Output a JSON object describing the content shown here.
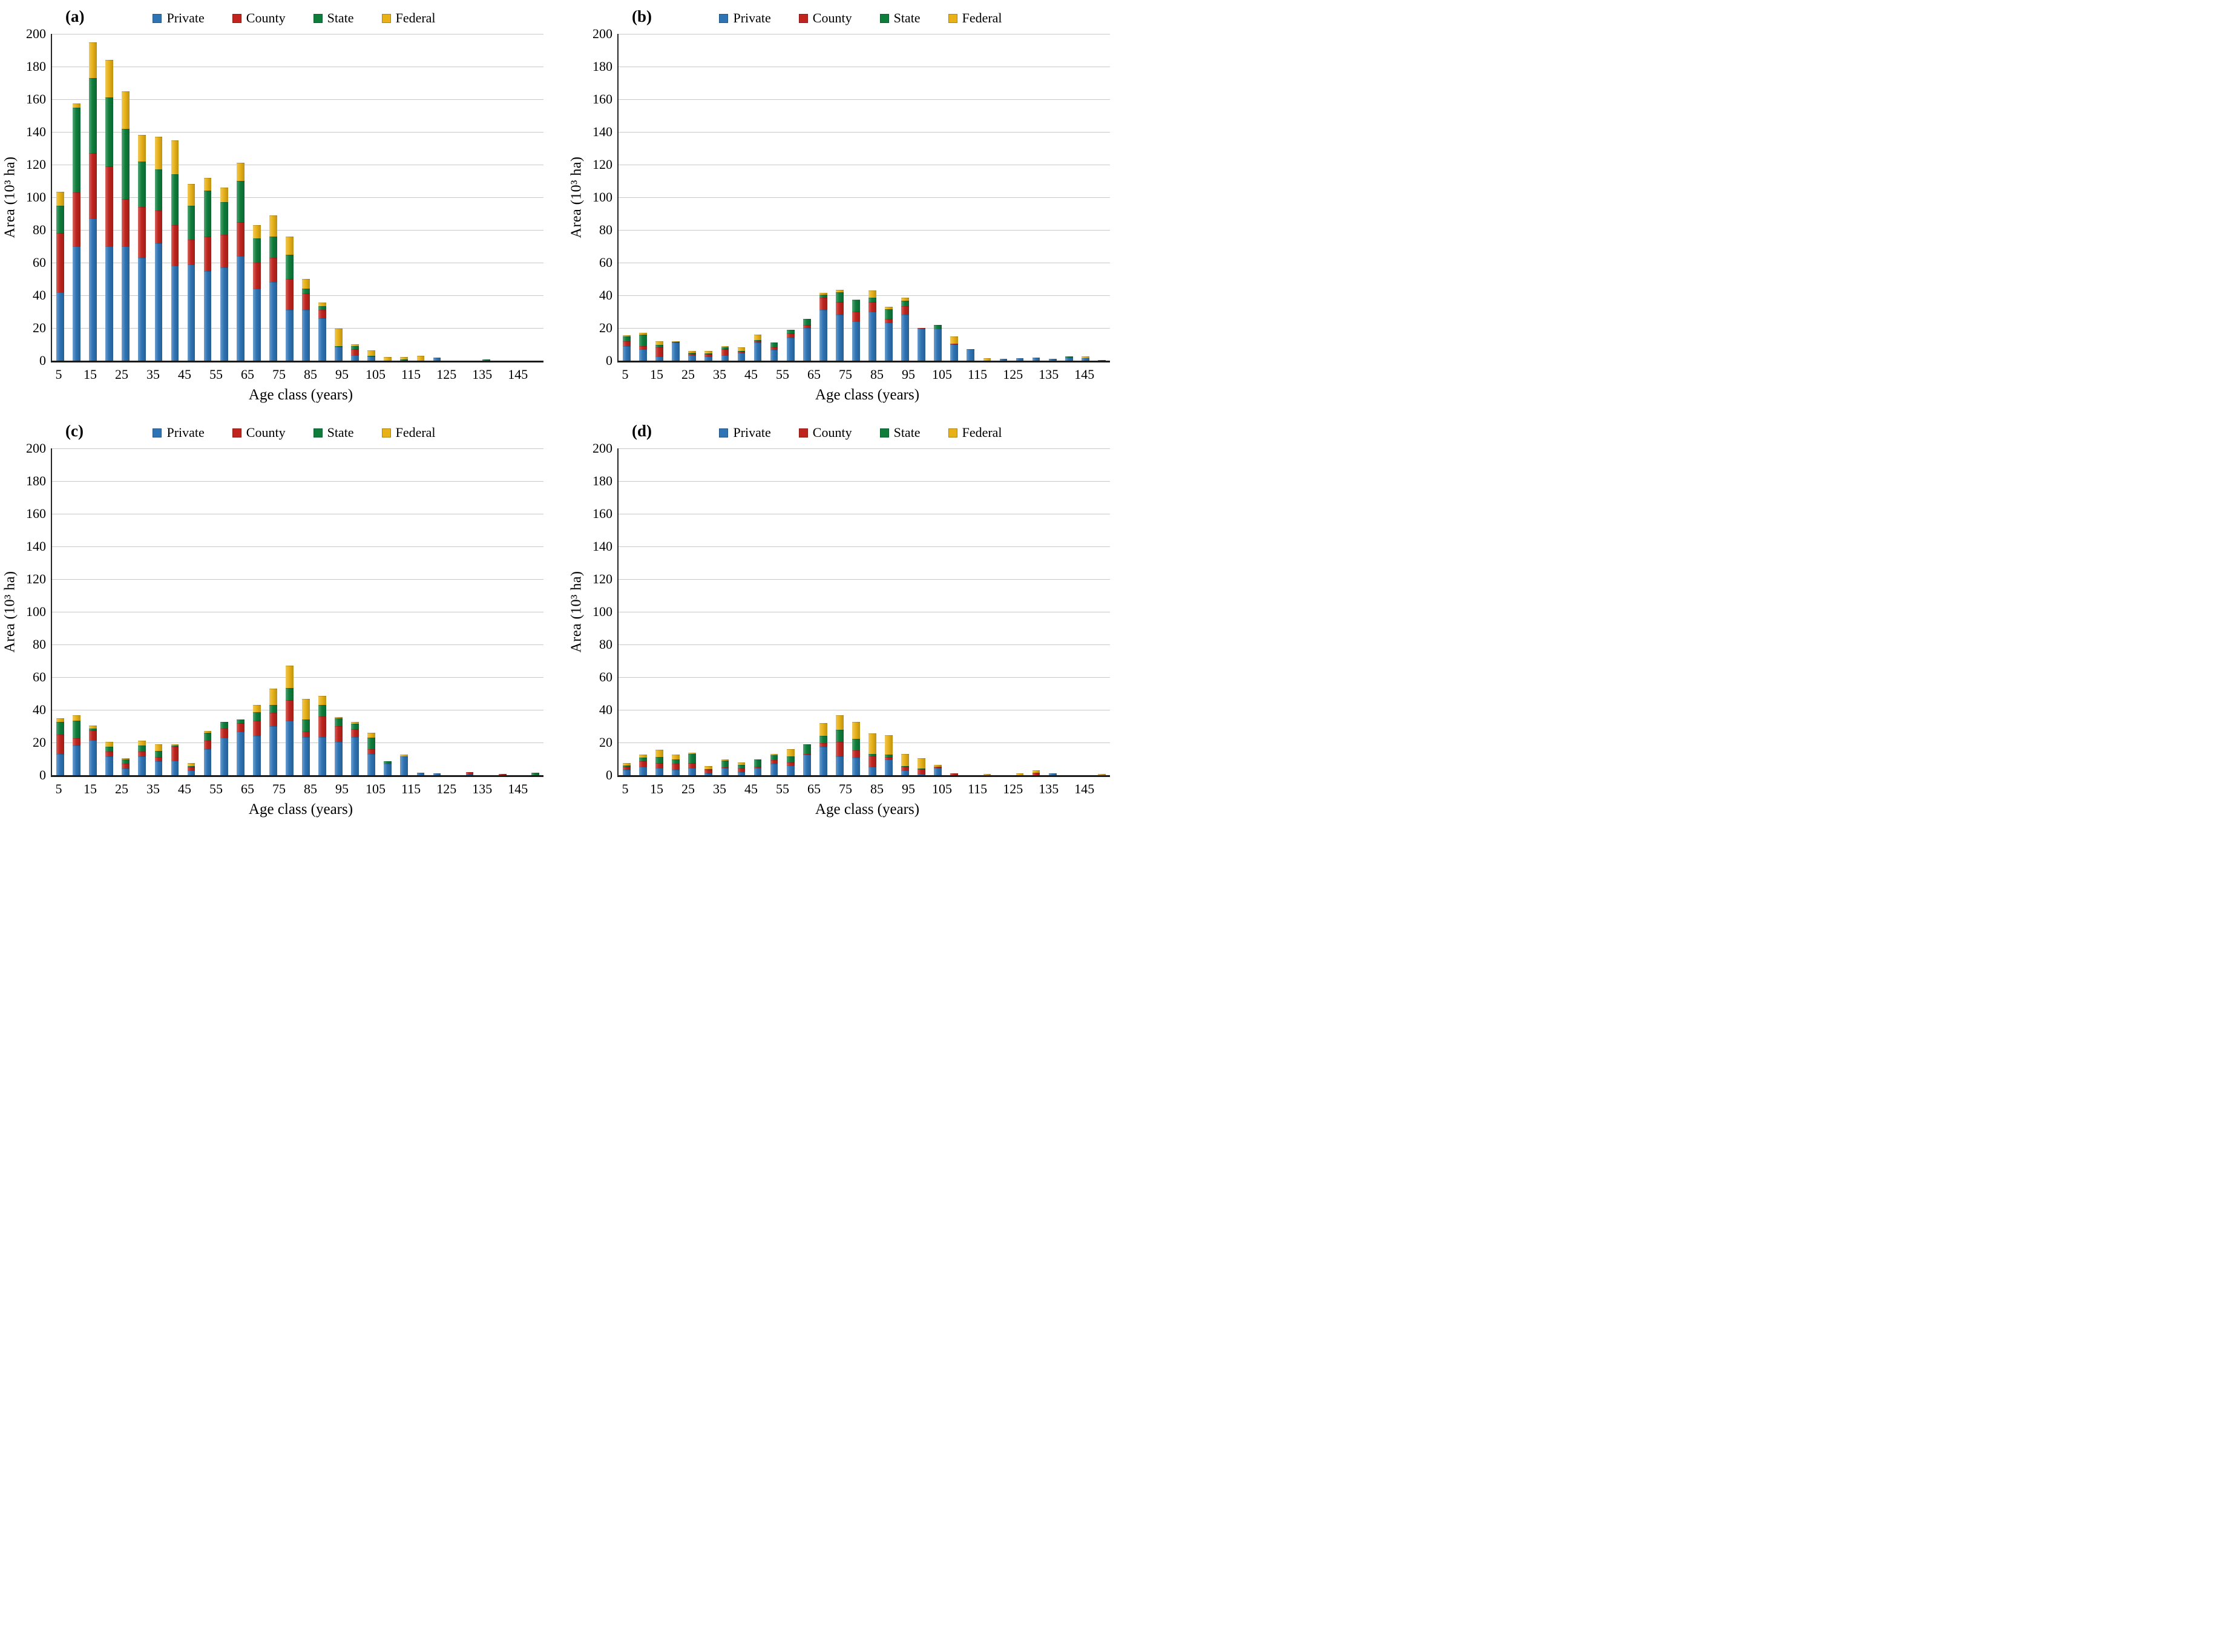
{
  "figure": {
    "y_axis_label": "Area  (10³ ha)",
    "x_axis_label": "Age class (years)",
    "y_ticks": [
      0,
      20,
      40,
      60,
      80,
      100,
      120,
      140,
      160,
      180,
      200
    ],
    "x_tick_labels": [
      "5",
      "15",
      "25",
      "35",
      "45",
      "55",
      "65",
      "75",
      "85",
      "95",
      "105",
      "115",
      "125",
      "135",
      "145"
    ],
    "legend": [
      {
        "label": "Private",
        "color": "#2e74b5"
      },
      {
        "label": "County",
        "color": "#c0241d"
      },
      {
        "label": "State",
        "color": "#0e7d3b"
      },
      {
        "label": "Federal",
        "color": "#e8b117"
      }
    ],
    "colors": {
      "grid": "#c9c9c9",
      "axis": "#1a1a1a"
    }
  },
  "chart_data": [
    {
      "type": "bar",
      "stacked": true,
      "panel_label": "(a)",
      "xlabel": "Age class (years)",
      "ylabel": "Area (10³ ha)",
      "ylim": [
        0,
        200
      ],
      "grid": true,
      "legend_position": "top",
      "categories": [
        5,
        10,
        15,
        20,
        25,
        30,
        35,
        40,
        45,
        50,
        55,
        60,
        65,
        70,
        75,
        80,
        85,
        90,
        95,
        100,
        105,
        110,
        115,
        120,
        125,
        130,
        135,
        140,
        145,
        150
      ],
      "series": [
        {
          "name": "Private",
          "color": "#2e74b5",
          "values": [
            42,
            70,
            87,
            70,
            70,
            63,
            72,
            58,
            59,
            55,
            57,
            64,
            44,
            48,
            31,
            31,
            26,
            8.5,
            3.5,
            2.5,
            0,
            0,
            0,
            2,
            0,
            0,
            0,
            0,
            0,
            0
          ]
        },
        {
          "name": "County",
          "color": "#c0241d",
          "values": [
            36,
            33,
            40,
            49,
            29,
            31,
            20,
            25,
            15,
            21,
            20,
            21,
            16,
            15,
            19,
            10,
            5,
            0,
            3.5,
            0,
            0,
            0,
            0,
            0,
            0,
            0,
            0,
            0,
            0,
            0
          ]
        },
        {
          "name": "State",
          "color": "#0e7d3b",
          "values": [
            17,
            52,
            46,
            42,
            43,
            28,
            25,
            31,
            21,
            28,
            20,
            25,
            15,
            13,
            15,
            3,
            2.5,
            0.5,
            2,
            0.3,
            0,
            0.7,
            0,
            0,
            0,
            0,
            0.8,
            0,
            0,
            0
          ]
        },
        {
          "name": "Federal",
          "color": "#e8b117",
          "values": [
            8.5,
            2.5,
            22,
            23,
            23,
            16,
            20,
            21,
            13,
            8,
            9,
            11,
            8,
            13,
            11,
            6,
            2,
            10.5,
            1,
            3.5,
            2.3,
            1.7,
            3,
            0,
            0,
            0,
            0,
            0,
            0,
            0
          ]
        }
      ]
    },
    {
      "type": "bar",
      "stacked": true,
      "panel_label": "(b)",
      "xlabel": "Age class (years)",
      "ylabel": "Area (10³ ha)",
      "ylim": [
        0,
        200
      ],
      "grid": true,
      "legend_position": "top",
      "categories": [
        5,
        10,
        15,
        20,
        25,
        30,
        35,
        40,
        45,
        50,
        55,
        60,
        65,
        70,
        75,
        80,
        85,
        90,
        95,
        100,
        105,
        110,
        115,
        120,
        125,
        130,
        135,
        140,
        145,
        150
      ],
      "series": [
        {
          "name": "Private",
          "color": "#2e74b5",
          "values": [
            9,
            7,
            2.5,
            11,
            3.5,
            2.5,
            3.5,
            5,
            11,
            6.5,
            14,
            20,
            31,
            28,
            24,
            30,
            23.5,
            28,
            19.5,
            19.5,
            10,
            7,
            0,
            1,
            1.5,
            2,
            1,
            2,
            1.5,
            0.5
          ]
        },
        {
          "name": "County",
          "color": "#c0241d",
          "values": [
            3,
            2,
            5.5,
            0,
            0.5,
            1.5,
            3.5,
            0.5,
            1,
            1.5,
            2.5,
            2,
            7.5,
            8,
            6,
            6,
            2,
            5.5,
            0.5,
            0,
            0.5,
            0,
            0,
            0,
            0,
            0,
            0,
            0,
            0,
            0
          ]
        },
        {
          "name": "State",
          "color": "#0e7d3b",
          "values": [
            3,
            7,
            1.5,
            0.5,
            1,
            0.5,
            1,
            0.5,
            0.5,
            3,
            2.5,
            3.5,
            2,
            6,
            7,
            2.5,
            6,
            3,
            0,
            2.5,
            0,
            0,
            0,
            0,
            0,
            0,
            0,
            0.5,
            0,
            0
          ]
        },
        {
          "name": "Federal",
          "color": "#e8b117",
          "values": [
            0.5,
            1,
            2.5,
            0.5,
            1,
            1.5,
            1,
            2,
            3.5,
            0,
            0,
            0,
            1,
            1.5,
            0.5,
            4.5,
            1.5,
            2,
            0,
            0,
            4.5,
            0,
            1.5,
            0,
            0,
            0,
            0,
            0,
            1,
            0
          ]
        }
      ]
    },
    {
      "type": "bar",
      "stacked": true,
      "panel_label": "(c)",
      "xlabel": "Age class (years)",
      "ylabel": "Area (10³ ha)",
      "ylim": [
        0,
        200
      ],
      "grid": true,
      "legend_position": "top",
      "categories": [
        5,
        10,
        15,
        20,
        25,
        30,
        35,
        40,
        45,
        50,
        55,
        60,
        65,
        70,
        75,
        80,
        85,
        90,
        95,
        100,
        105,
        110,
        115,
        120,
        125,
        130,
        135,
        140,
        145,
        150
      ],
      "series": [
        {
          "name": "Private",
          "color": "#2e74b5",
          "values": [
            13,
            18,
            21.5,
            11.5,
            4,
            11.5,
            8.5,
            9,
            3,
            16,
            23,
            26.5,
            24,
            30,
            33.5,
            23.5,
            23.5,
            20.5,
            23.5,
            13,
            7,
            11.5,
            1.5,
            1,
            0,
            0.5,
            0,
            0,
            0,
            0
          ]
        },
        {
          "name": "County",
          "color": "#c0241d",
          "values": [
            12,
            4.5,
            6,
            3,
            3,
            3,
            2.5,
            8.5,
            2,
            5,
            5.5,
            5.5,
            9.5,
            8,
            12.5,
            3,
            12.5,
            9.5,
            4.5,
            3,
            0,
            0,
            0,
            0,
            0,
            1.5,
            0,
            0.8,
            0,
            0
          ]
        },
        {
          "name": "State",
          "color": "#0e7d3b",
          "values": [
            7.5,
            11,
            1,
            3,
            2.5,
            3.5,
            4,
            0.5,
            0.5,
            5,
            4,
            2,
            5,
            5,
            7.5,
            7.5,
            7,
            5,
            3.5,
            7,
            1.5,
            0,
            0,
            0,
            0,
            0,
            0,
            0,
            0,
            1.5
          ]
        },
        {
          "name": "Federal",
          "color": "#e8b117",
          "values": [
            2.5,
            3,
            2,
            3,
            1,
            3,
            4,
            1,
            2,
            1,
            0,
            0,
            4.5,
            10,
            13.5,
            12.5,
            5.5,
            0.5,
            1,
            3,
            0,
            1,
            0,
            0,
            0,
            0,
            0,
            0,
            0,
            0
          ]
        }
      ]
    },
    {
      "type": "bar",
      "stacked": true,
      "panel_label": "(d)",
      "xlabel": "Age class (years)",
      "ylabel": "Area (10³ ha)",
      "ylim": [
        0,
        200
      ],
      "grid": true,
      "legend_position": "top",
      "categories": [
        5,
        10,
        15,
        20,
        25,
        30,
        35,
        40,
        45,
        50,
        55,
        60,
        65,
        70,
        75,
        80,
        85,
        90,
        95,
        100,
        105,
        110,
        115,
        120,
        125,
        130,
        135,
        140,
        145,
        150
      ],
      "series": [
        {
          "name": "Private",
          "color": "#2e74b5",
          "values": [
            3.3,
            5.2,
            4.4,
            3.3,
            4.6,
            1,
            4.3,
            2,
            4.6,
            7.2,
            5.9,
            12.5,
            17.4,
            11.5,
            10.8,
            5.2,
            9.5,
            3,
            0.7,
            4.3,
            0,
            0,
            0,
            0,
            0,
            0,
            1,
            0,
            0,
            0
          ]
        },
        {
          "name": "County",
          "color": "#c0241d",
          "values": [
            2,
            3.3,
            3.1,
            3.6,
            3,
            2.3,
            0.7,
            1.9,
            0.5,
            2,
            2,
            0.5,
            2.3,
            8.8,
            4.3,
            6.6,
            1.5,
            2.2,
            2.9,
            0.9,
            1.3,
            0,
            0,
            0,
            0,
            1.5,
            0,
            0,
            0,
            0
          ]
        },
        {
          "name": "State",
          "color": "#0e7d3b",
          "values": [
            0.7,
            2.3,
            3.6,
            2.6,
            5.2,
            0.5,
            3.9,
            2.3,
            4.4,
            2.9,
            3.6,
            6,
            4.3,
            7.6,
            7.2,
            1.3,
            1.5,
            0.5,
            0.5,
            0,
            0,
            0,
            0,
            0,
            0,
            0,
            0,
            0,
            0,
            0
          ]
        },
        {
          "name": "Federal",
          "color": "#e8b117",
          "values": [
            1.5,
            1.7,
            4.3,
            3,
            1,
            1.8,
            0.9,
            1.7,
            0,
            0.7,
            4.6,
            0,
            7.8,
            8.8,
            10.2,
            12.5,
            11.8,
            7.4,
            6.1,
            1,
            0,
            0,
            0.8,
            0,
            1.3,
            1.5,
            0,
            0,
            0,
            0.7
          ]
        }
      ]
    }
  ]
}
